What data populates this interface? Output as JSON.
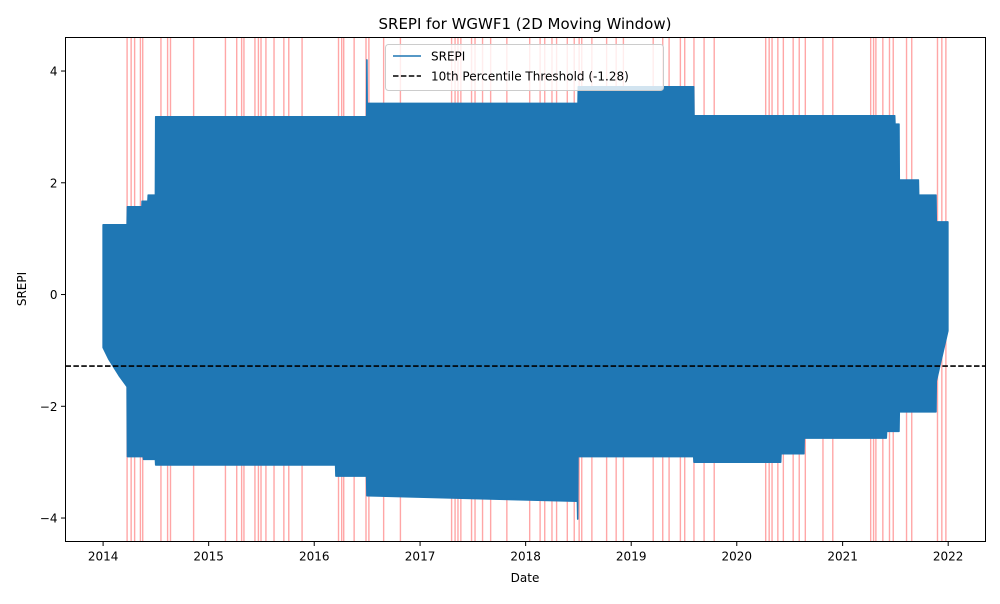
{
  "chart_data": {
    "type": "line",
    "title": "SREPI for WGWF1 (2D Moving Window)",
    "xlabel": "Date",
    "ylabel": "SREPI",
    "xlim": [
      "2013-08-24",
      "2022-05-10"
    ],
    "ylim": [
      -4.42,
      4.6
    ],
    "x_ticks": [
      {
        "date": "2014-01-01",
        "label": "2014"
      },
      {
        "date": "2015-01-01",
        "label": "2015"
      },
      {
        "date": "2016-01-01",
        "label": "2016"
      },
      {
        "date": "2017-01-01",
        "label": "2017"
      },
      {
        "date": "2018-01-01",
        "label": "2018"
      },
      {
        "date": "2019-01-01",
        "label": "2019"
      },
      {
        "date": "2020-01-01",
        "label": "2020"
      },
      {
        "date": "2021-01-01",
        "label": "2021"
      },
      {
        "date": "2022-01-01",
        "label": "2022"
      }
    ],
    "y_ticks": [
      {
        "value": -4,
        "label": "−4"
      },
      {
        "value": -2,
        "label": "−2"
      },
      {
        "value": 0,
        "label": "0"
      },
      {
        "value": 2,
        "label": "2"
      },
      {
        "value": 4,
        "label": "4"
      }
    ],
    "grid": false,
    "legend_position": "upper center",
    "series": [
      {
        "name": "SREPI",
        "color": "#1f77b4",
        "style": "solid",
        "upper_envelope": [
          [
            "2014-01-01",
            1.25
          ],
          [
            "2014-03-25",
            1.25
          ],
          [
            "2014-03-26",
            1.57
          ],
          [
            "2014-05-15",
            1.57
          ],
          [
            "2014-05-16",
            1.67
          ],
          [
            "2014-06-05",
            1.67
          ],
          [
            "2014-06-06",
            1.78
          ],
          [
            "2014-07-01",
            1.78
          ],
          [
            "2014-07-02",
            3.18
          ],
          [
            "2016-06-30",
            3.18
          ],
          [
            "2016-07-01",
            4.2
          ],
          [
            "2016-07-02",
            3.42
          ],
          [
            "2018-07-01",
            3.42
          ],
          [
            "2018-07-02",
            3.72
          ],
          [
            "2019-08-05",
            3.72
          ],
          [
            "2019-08-06",
            3.2
          ],
          [
            "2021-06-30",
            3.2
          ],
          [
            "2021-07-01",
            3.05
          ],
          [
            "2021-07-15",
            3.05
          ],
          [
            "2021-07-16",
            2.05
          ],
          [
            "2021-09-20",
            2.05
          ],
          [
            "2021-09-21",
            1.78
          ],
          [
            "2021-11-20",
            1.78
          ],
          [
            "2021-11-21",
            1.3
          ],
          [
            "2021-12-31",
            1.3
          ]
        ],
        "lower_envelope": [
          [
            "2014-01-01",
            -0.95
          ],
          [
            "2014-01-20",
            -1.15
          ],
          [
            "2014-02-25",
            -1.45
          ],
          [
            "2014-03-25",
            -1.65
          ],
          [
            "2014-03-26",
            -2.9
          ],
          [
            "2014-05-20",
            -2.9
          ],
          [
            "2014-05-21",
            -2.95
          ],
          [
            "2014-07-01",
            -2.95
          ],
          [
            "2014-07-02",
            -3.05
          ],
          [
            "2016-03-15",
            -3.05
          ],
          [
            "2016-03-16",
            -3.25
          ],
          [
            "2016-06-30",
            -3.25
          ],
          [
            "2016-07-01",
            -3.6
          ],
          [
            "2018-06-29",
            -3.7
          ],
          [
            "2018-06-30",
            -4.02
          ],
          [
            "2018-07-01",
            -2.9
          ],
          [
            "2019-08-05",
            -2.9
          ],
          [
            "2019-08-06",
            -3.0
          ],
          [
            "2020-06-01",
            -3.0
          ],
          [
            "2020-06-02",
            -2.85
          ],
          [
            "2020-08-20",
            -2.85
          ],
          [
            "2020-08-21",
            -2.57
          ],
          [
            "2021-06-01",
            -2.57
          ],
          [
            "2021-06-02",
            -2.45
          ],
          [
            "2021-07-15",
            -2.45
          ],
          [
            "2021-07-16",
            -2.1
          ],
          [
            "2021-11-20",
            -2.1
          ],
          [
            "2021-11-21",
            -1.55
          ],
          [
            "2021-12-31",
            -0.65
          ]
        ]
      },
      {
        "name": "10th Percentile Threshold (-1.28)",
        "color": "#000000",
        "style": "dashed",
        "value": -1.28
      }
    ],
    "highlight_band_color": "#ff0000",
    "highlight_dates": [
      "2014-03-25",
      "2014-04-08",
      "2014-04-20",
      "2014-05-10",
      "2014-05-18",
      "2014-07-20",
      "2014-08-12",
      "2014-08-22",
      "2014-11-10",
      "2015-02-28",
      "2015-04-08",
      "2015-04-25",
      "2015-05-03",
      "2015-06-10",
      "2015-06-22",
      "2015-07-01",
      "2015-07-18",
      "2015-08-15",
      "2015-09-18",
      "2015-10-05",
      "2015-11-20",
      "2016-03-25",
      "2016-04-05",
      "2016-04-12",
      "2016-05-18",
      "2016-06-28",
      "2016-07-08",
      "2016-08-28",
      "2016-10-25",
      "2017-04-20",
      "2017-05-02",
      "2017-05-12",
      "2017-05-22",
      "2017-06-28",
      "2017-07-10",
      "2017-08-05",
      "2017-09-02",
      "2017-10-28",
      "2018-01-15",
      "2018-02-20",
      "2018-03-08",
      "2018-04-02",
      "2018-04-18",
      "2018-05-25",
      "2018-06-18",
      "2018-07-05",
      "2018-07-14",
      "2018-08-18",
      "2018-10-08",
      "2018-11-10",
      "2018-12-05",
      "2019-03-18",
      "2019-04-20",
      "2019-05-12",
      "2019-06-20",
      "2019-07-05",
      "2019-08-06",
      "2019-09-10",
      "2019-10-15",
      "2020-04-10",
      "2020-04-22",
      "2020-05-02",
      "2020-05-22",
      "2020-06-10",
      "2020-07-14",
      "2020-08-04",
      "2020-08-25",
      "2020-10-25",
      "2020-11-28",
      "2021-04-08",
      "2021-04-18",
      "2021-04-26",
      "2021-05-20",
      "2021-06-12",
      "2021-06-25",
      "2021-08-10",
      "2021-08-28",
      "2021-11-25",
      "2021-12-10",
      "2021-12-24"
    ]
  }
}
